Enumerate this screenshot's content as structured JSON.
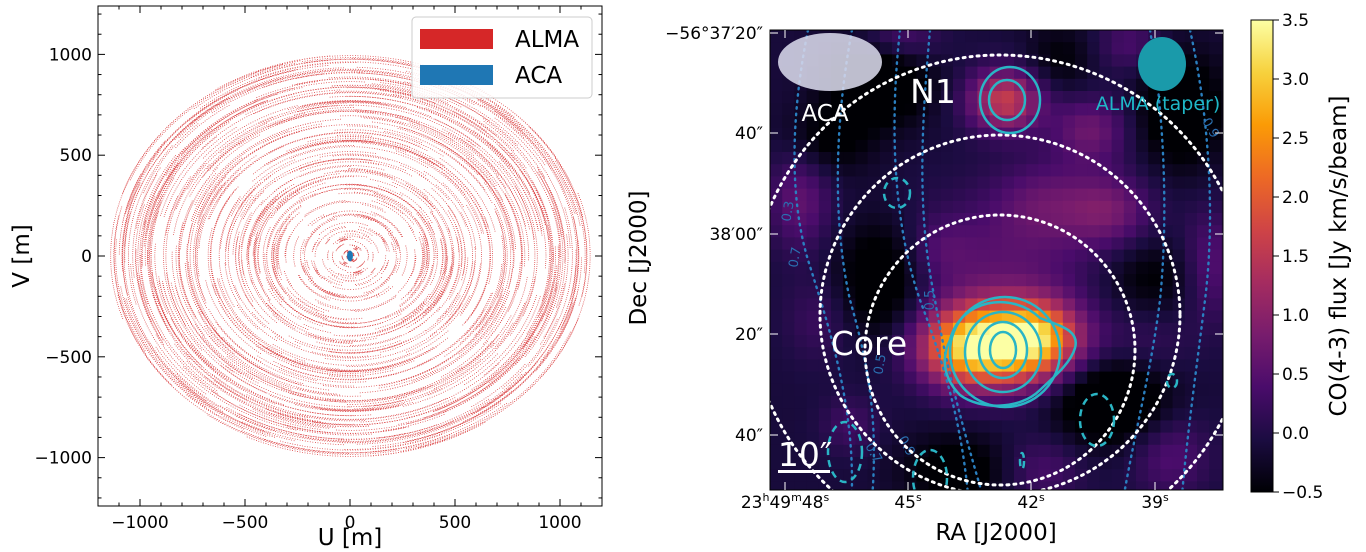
{
  "chart_data": [
    {
      "type": "scatter",
      "panel": "uv-coverage",
      "xlabel": "U [m]",
      "ylabel": "V [m]",
      "xlim": [
        -1200,
        1200
      ],
      "ylim": [
        -1240,
        1240
      ],
      "xticks": [
        -1000,
        -500,
        0,
        500,
        1000
      ],
      "yticks": [
        -1000,
        -500,
        0,
        500,
        1000
      ],
      "xtick_labels": [
        "−1000",
        "−500",
        "0",
        "500",
        "1000"
      ],
      "ytick_labels": [
        "−1000",
        "−500",
        "0",
        "500",
        "1000"
      ],
      "legend_position": "top-right",
      "series": [
        {
          "name": "ALMA",
          "color": "#d62728",
          "max_baseline_m": 1150,
          "axis_ratio": 0.85
        },
        {
          "name": "ACA",
          "color": "#1f77b4",
          "max_baseline_m": 40,
          "axis_ratio": 0.85
        }
      ]
    },
    {
      "type": "heatmap",
      "panel": "co-map",
      "xlabel": "RA [J2000]",
      "ylabel": "Dec [J2000]",
      "xticks": [
        {
          "base": "23",
          "h": "h",
          "mid": "49",
          "m": "m",
          "sec": "48",
          "s": "s"
        },
        {
          "base": "",
          "h": "",
          "mid": "",
          "m": "",
          "sec": "45",
          "s": "s"
        },
        {
          "base": "",
          "h": "",
          "mid": "",
          "m": "",
          "sec": "42",
          "s": "s"
        },
        {
          "base": "",
          "h": "",
          "mid": "",
          "m": "",
          "sec": "39",
          "s": "s"
        }
      ],
      "yticks": [
        "−56°37′20″",
        "40″",
        "38′00″",
        "20″",
        "40″"
      ],
      "colorbar": {
        "label": "CO(4-3) flux [Jy km/s/beam]",
        "min": -0.5,
        "max": 3.5,
        "ticks": [
          "−0.5",
          "0.0",
          "0.5",
          "1.0",
          "1.5",
          "2.0",
          "2.5",
          "3.0",
          "3.5"
        ],
        "colors": [
          "#000004",
          "#1b0c41",
          "#4a0c6b",
          "#781c6d",
          "#a52c60",
          "#cf4446",
          "#ed6925",
          "#fb9b06",
          "#f7d13d",
          "#fcffa4"
        ]
      },
      "annotations": {
        "n1": "N1",
        "core": "Core",
        "aca_beam": "ACA",
        "alma_beam": "ALMA (taper)",
        "scalebar": "10″"
      },
      "primary_beam_levels": [
        "0.3",
        "0.7",
        "0.9",
        "0.5",
        "0.5",
        "0.7",
        "0.9"
      ],
      "contour_color": "#2ab5c5",
      "circle_color": "#ffffff"
    }
  ]
}
